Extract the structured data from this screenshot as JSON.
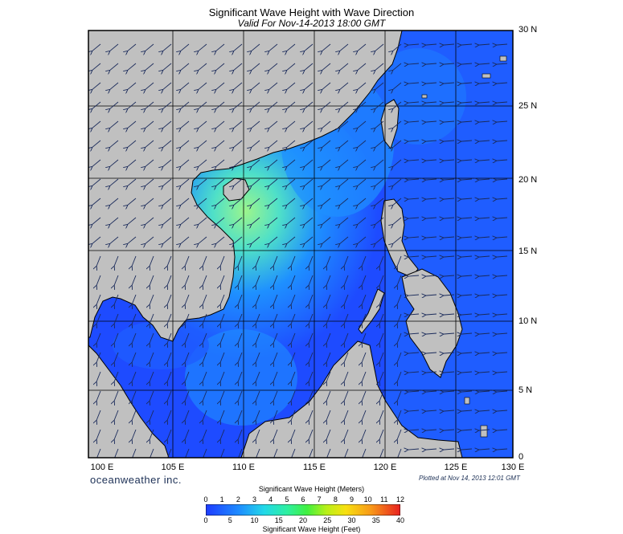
{
  "title": "Significant Wave Height with Wave Direction",
  "subtitle": "Valid For Nov-14-2013 18:00 GMT",
  "brand": "oceanweather inc.",
  "plotted_at": "Plotted at Nov 14, 2013 12:01 GMT",
  "map": {
    "lon_labels": [
      "100 E",
      "105 E",
      "110 E",
      "115 E",
      "120 E",
      "125 E",
      "130 E"
    ],
    "lat_labels": [
      "30 N",
      "25 N",
      "20 N",
      "15 N",
      "10 N",
      "5 N",
      "0"
    ],
    "land_color": "#c0c0c0",
    "sea_colors": {
      "low": "#1e4bff",
      "mid": "#1e90ff",
      "high": "#4fe0c8",
      "peak": "#9cf58c"
    }
  },
  "colorbar": {
    "meters_title": "Significant Wave Height (Meters)",
    "feet_title": "Significant Wave Height (Feet)",
    "meters_ticks": [
      "0",
      "1",
      "2",
      "3",
      "4",
      "5",
      "6",
      "7",
      "8",
      "9",
      "10",
      "11",
      "12"
    ],
    "feet_ticks": [
      "0",
      "5",
      "10",
      "15",
      "20",
      "25",
      "30",
      "35",
      "40"
    ],
    "colors": [
      "#1e3cff",
      "#1e6cff",
      "#1ea0ff",
      "#22d8e8",
      "#2ef0a0",
      "#40f040",
      "#90f020",
      "#d8f010",
      "#f8d010",
      "#f89818",
      "#f06020",
      "#e82020"
    ]
  }
}
